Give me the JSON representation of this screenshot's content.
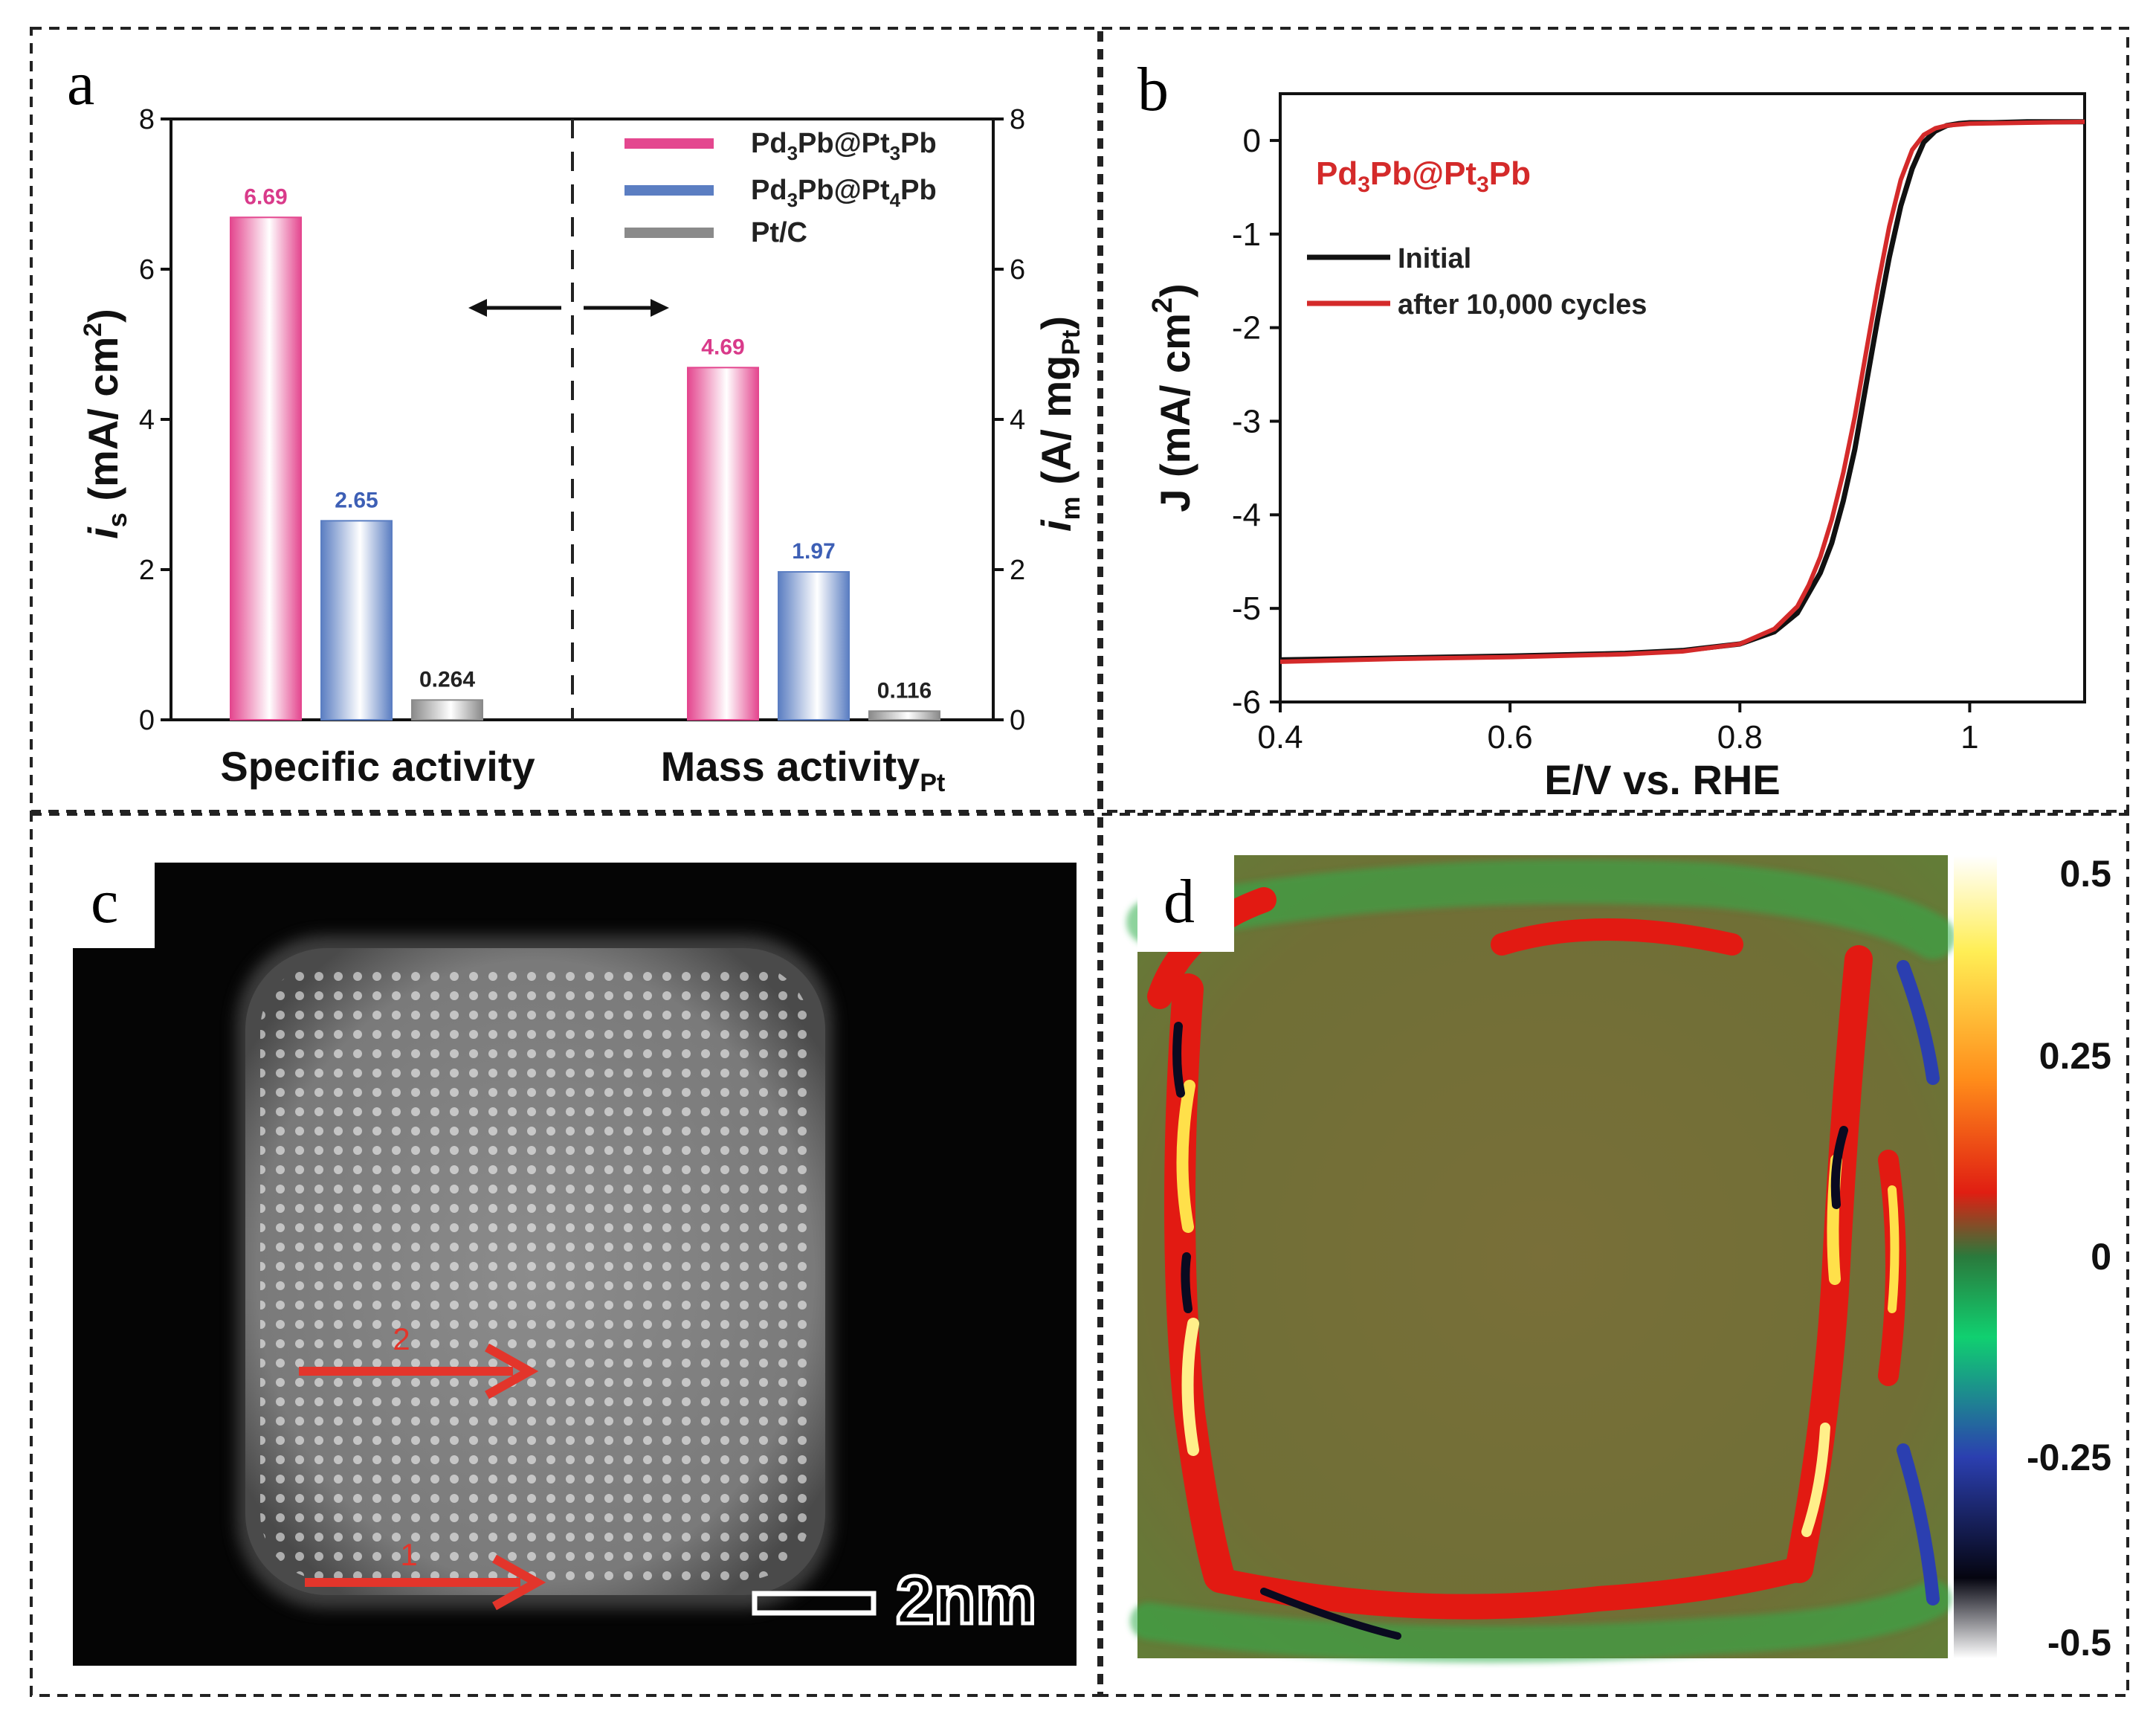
{
  "panels": {
    "a": "a",
    "b": "b",
    "c": "c",
    "d": "d"
  },
  "colors": {
    "pd3pb_pt3pb": "#e4478f",
    "pd3pb_pt4pb": "#5b7ec2",
    "ptc": "#8a8a8a",
    "curve_initial": "#111111",
    "curve_after": "#d42a2a",
    "arrow_red": "#e3352b",
    "title_red": "#d42a2a"
  },
  "chart_data": [
    {
      "id": "a",
      "type": "bar",
      "groups": [
        {
          "name": "Specific activity",
          "axis": "left"
        },
        {
          "name": "Mass activity",
          "subscript": "Pt",
          "axis": "right"
        }
      ],
      "series": [
        {
          "name": "Pd3Pb@Pt3Pb",
          "label_parts": [
            "Pd",
            "3",
            "Pb@Pt",
            "3",
            "Pb"
          ],
          "color": "#e4478f",
          "values": [
            6.69,
            4.69
          ],
          "value_labels": [
            "6.69",
            "4.69"
          ]
        },
        {
          "name": "Pd3Pb@Pt4Pb",
          "label_parts": [
            "Pd",
            "3",
            "Pb@Pt",
            "4",
            "Pb"
          ],
          "color": "#5b7ec2",
          "values": [
            2.65,
            1.97
          ],
          "value_labels": [
            "2.65",
            "1.97"
          ]
        },
        {
          "name": "Pt/C",
          "label_parts": [
            "Pt/C",
            "",
            "",
            "",
            ""
          ],
          "color": "#8a8a8a",
          "values": [
            0.264,
            0.116
          ],
          "value_labels": [
            "0.264",
            "0.116"
          ]
        }
      ],
      "y_left": {
        "label_main": "i",
        "label_sub": "s",
        "label_rest": " (mA/ cm",
        "label_sup": "2",
        "label_end": ")",
        "ylim": [
          0,
          8
        ],
        "ticks": [
          0,
          2,
          4,
          6,
          8
        ]
      },
      "y_right": {
        "label_main": "i",
        "label_sub": "m",
        "label_rest": " (A/ mg",
        "label_sub2": "Pt",
        "label_end": ")",
        "ylim": [
          0,
          8
        ],
        "ticks": [
          0,
          2,
          4,
          6,
          8
        ]
      },
      "legend_position": "top-right",
      "annotation": "double-headed arrows across dashed divider"
    },
    {
      "id": "b",
      "type": "line",
      "title_parts": [
        "Pd",
        "3",
        "Pb@Pt",
        "3",
        "Pb"
      ],
      "xlabel": "E/V vs. RHE",
      "ylabel_main": "J (mA/ cm",
      "ylabel_sup": "2",
      "ylabel_end": ")",
      "xlim": [
        0.4,
        1.1
      ],
      "ylim": [
        -6.0,
        0.5
      ],
      "x_ticks": [
        0.4,
        0.6,
        0.8,
        1.0
      ],
      "x_tick_labels": [
        "0.4",
        "0.6",
        "0.8",
        "1"
      ],
      "y_ticks": [
        0,
        -1,
        -2,
        -3,
        -4,
        -5,
        -6
      ],
      "y_tick_labels": [
        "0",
        "-1",
        "-2",
        "-3",
        "-4",
        "-5",
        "-6"
      ],
      "series": [
        {
          "name": "Initial",
          "color": "#111111",
          "x": [
            0.4,
            0.5,
            0.6,
            0.7,
            0.75,
            0.8,
            0.83,
            0.85,
            0.87,
            0.88,
            0.89,
            0.9,
            0.91,
            0.92,
            0.93,
            0.94,
            0.95,
            0.96,
            0.97,
            0.98,
            0.99,
            1.0,
            1.02,
            1.05,
            1.1
          ],
          "y": [
            -5.55,
            -5.53,
            -5.51,
            -5.48,
            -5.45,
            -5.38,
            -5.25,
            -5.05,
            -4.62,
            -4.3,
            -3.85,
            -3.3,
            -2.6,
            -1.9,
            -1.25,
            -0.7,
            -0.3,
            -0.02,
            0.1,
            0.16,
            0.18,
            0.19,
            0.19,
            0.2,
            0.2
          ]
        },
        {
          "name": "after 10,000 cycles",
          "label_parts": [
            "after",
            "10,000 cycles"
          ],
          "color": "#d42a2a",
          "x": [
            0.4,
            0.5,
            0.6,
            0.7,
            0.75,
            0.8,
            0.83,
            0.85,
            0.86,
            0.87,
            0.88,
            0.89,
            0.9,
            0.91,
            0.92,
            0.93,
            0.94,
            0.95,
            0.96,
            0.97,
            0.98,
            0.99,
            1.0,
            1.05,
            1.1
          ],
          "y": [
            -5.57,
            -5.54,
            -5.52,
            -5.49,
            -5.46,
            -5.38,
            -5.22,
            -4.98,
            -4.75,
            -4.45,
            -4.05,
            -3.55,
            -2.95,
            -2.25,
            -1.55,
            -0.92,
            -0.42,
            -0.1,
            0.06,
            0.13,
            0.16,
            0.17,
            0.18,
            0.19,
            0.2
          ]
        }
      ]
    }
  ],
  "image_c": {
    "scalebar_label": "2nm",
    "arrow_labels": [
      "1",
      "2"
    ]
  },
  "image_d": {
    "colorbar_ticks": [
      "0.5",
      "0.25",
      "0",
      "-0.25",
      "-0.5"
    ],
    "colorbar_values": [
      0.5,
      0.25,
      0,
      -0.25,
      -0.5
    ]
  }
}
